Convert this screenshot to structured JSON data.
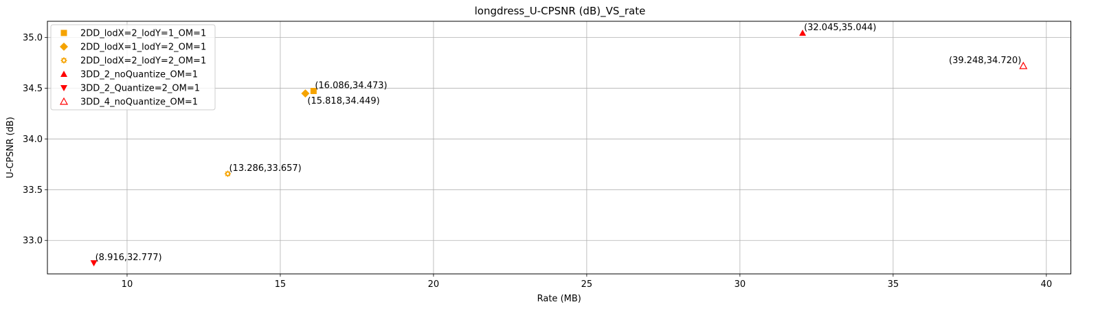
{
  "chart_data": {
    "type": "scatter",
    "title": "longdress_U-CPSNR (dB)_VS_rate",
    "xlabel": "Rate (MB)",
    "ylabel": "U-CPSNR (dB)",
    "xlim": [
      7.4,
      40.8
    ],
    "ylim": [
      32.67,
      35.16
    ],
    "xticks": [
      10,
      15,
      20,
      25,
      30,
      35,
      40
    ],
    "xtick_labels": [
      "10",
      "15",
      "20",
      "25",
      "30",
      "35",
      "40"
    ],
    "yticks": [
      33.0,
      33.5,
      34.0,
      34.5,
      35.0
    ],
    "ytick_labels": [
      "33.0",
      "33.5",
      "34.0",
      "34.5",
      "35.0"
    ],
    "grid": true,
    "legend_position": "top-left",
    "series": [
      {
        "name": "2DD_lodX=2_lodY=1_OM=1",
        "marker": "square",
        "color": "#f5a300",
        "points": [
          {
            "x": 16.086,
            "y": 34.473,
            "label": "(16.086,34.473)",
            "label_pos": "above-right"
          }
        ]
      },
      {
        "name": "2DD_lodX=1_lodY=2_OM=1",
        "marker": "diamond",
        "color": "#f5a300",
        "points": [
          {
            "x": 15.818,
            "y": 34.449,
            "label": "(15.818,34.449)",
            "label_pos": "below-right"
          }
        ]
      },
      {
        "name": "2DD_lodX=2_lodY=2_OM=1",
        "marker": "gear",
        "color": "#f5a300",
        "points": [
          {
            "x": 13.286,
            "y": 33.657,
            "label": "(13.286,33.657)",
            "label_pos": "above-right"
          }
        ]
      },
      {
        "name": "3DD_2_noQuantize_OM=1",
        "marker": "triangle-up",
        "color": "#ff0000",
        "points": [
          {
            "x": 32.045,
            "y": 35.044,
            "label": "(32.045,35.044)",
            "label_pos": "above-right"
          }
        ]
      },
      {
        "name": "3DD_2_Quantize=2_OM=1",
        "marker": "triangle-down",
        "color": "#ff0000",
        "points": [
          {
            "x": 8.916,
            "y": 32.777,
            "label": "(8.916,32.777)",
            "label_pos": "above-right"
          }
        ]
      },
      {
        "name": "3DD_4_noQuantize_OM=1",
        "marker": "triangle-up-open",
        "color": "#ff0000",
        "points": [
          {
            "x": 39.248,
            "y": 34.72,
            "label": "(39.248,34.720)",
            "label_pos": "above-left"
          }
        ]
      }
    ]
  }
}
